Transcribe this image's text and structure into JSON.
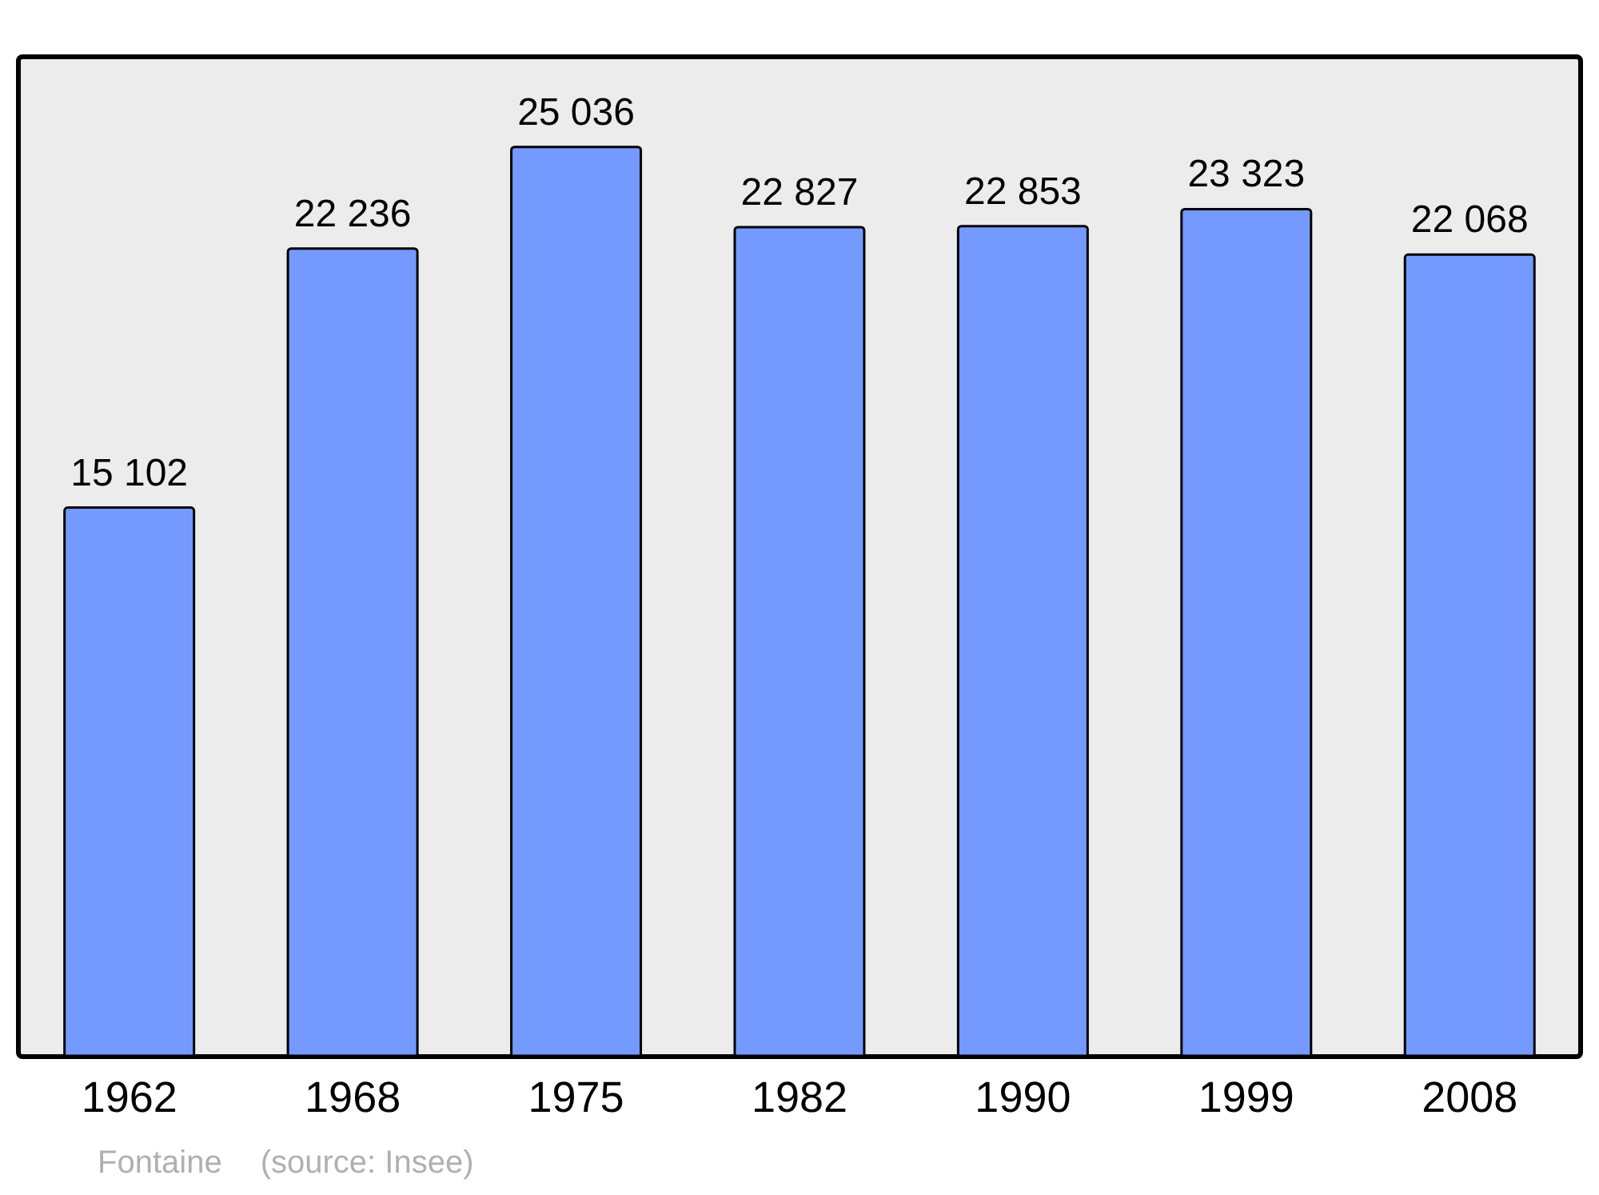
{
  "chart_data": {
    "type": "bar",
    "categories": [
      "1962",
      "1968",
      "1975",
      "1982",
      "1990",
      "1999",
      "2008"
    ],
    "values": [
      15102,
      22236,
      25036,
      22827,
      22853,
      23323,
      22068
    ],
    "color": "#7499ff",
    "data_labels": true,
    "annotations": [
      "Fontaine",
      "(source: Insee)"
    ]
  }
}
